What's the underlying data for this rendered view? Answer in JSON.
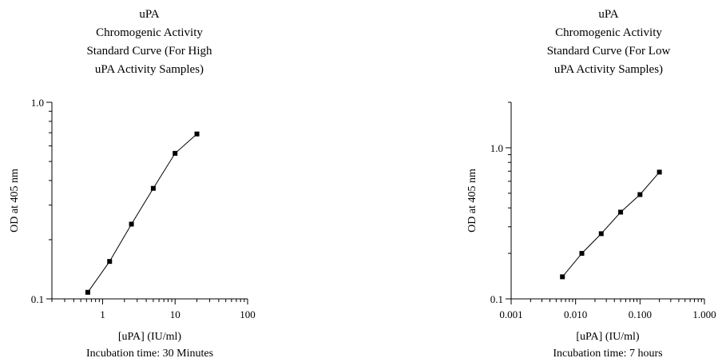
{
  "chart_data": [
    {
      "type": "line",
      "title": [
        "uPA",
        "Chromogenic Activity",
        "Standard Curve (For High",
        "uPA Activity Samples)"
      ],
      "xlabel": "[uPA]  (IU/ml)",
      "subtitle": "Incubation time: 30 Minutes",
      "ylabel": "OD at 405 nm",
      "xscale": "log",
      "yscale": "log",
      "xlim": [
        0.2,
        100
      ],
      "ylim": [
        0.1,
        1.0
      ],
      "x_ticks": [
        1,
        10,
        100
      ],
      "x_tick_labels": [
        "1",
        "10",
        "100"
      ],
      "y_ticks": [
        0.1,
        1.0
      ],
      "y_tick_labels": [
        "0.1",
        "1.0"
      ],
      "grid": false,
      "marker": "square",
      "series": [
        {
          "x": [
            0.625,
            1.25,
            2.5,
            5,
            10,
            20
          ],
          "y": [
            0.108,
            0.155,
            0.24,
            0.365,
            0.55,
            0.69
          ]
        }
      ]
    },
    {
      "type": "line",
      "title": [
        "uPA",
        "Chromogenic Activity",
        "Standard Curve (For Low",
        "uPA Activity Samples)"
      ],
      "xlabel": "[uPA]  (IU/ml)",
      "subtitle": "Incubation time: 7 hours",
      "ylabel": "OD at 405 nm",
      "xscale": "log",
      "yscale": "log",
      "xlim": [
        0.001,
        1.0
      ],
      "ylim": [
        0.1,
        2.0
      ],
      "x_ticks": [
        0.001,
        0.01,
        0.1,
        1.0
      ],
      "x_tick_labels": [
        "0.001",
        "0.010",
        "0.100",
        "1.000"
      ],
      "y_ticks": [
        0.1,
        1.0
      ],
      "y_tick_labels": [
        "0.1",
        "1.0"
      ],
      "grid": false,
      "marker": "square",
      "series": [
        {
          "x": [
            0.00625,
            0.0125,
            0.025,
            0.05,
            0.1,
            0.2
          ],
          "y": [
            0.14,
            0.2,
            0.27,
            0.375,
            0.49,
            0.69
          ]
        }
      ]
    }
  ]
}
